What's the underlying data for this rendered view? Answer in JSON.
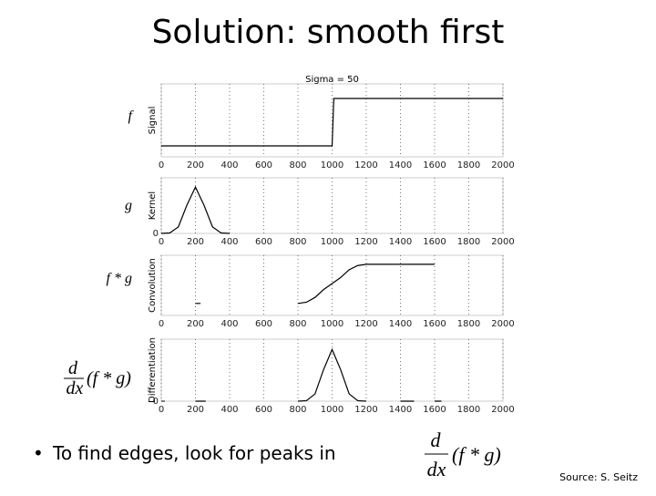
{
  "title": "Solution: smooth first",
  "bullet": {
    "text": "To find edges, look for peaks in",
    "numerator": "d",
    "denominator": "dx",
    "expr": "(f * g)"
  },
  "source": "Source: S. Seitz",
  "derivative_label": {
    "numerator": "d",
    "denominator": "dx",
    "expr": "(f * g)"
  },
  "chart_data": [
    {
      "type": "line",
      "title": "Sigma = 50",
      "ylabel": "Signal",
      "side_label": "f",
      "color": "#000000",
      "grid": true,
      "x": [
        0,
        1000,
        1010,
        2000
      ],
      "values": [
        0.15,
        0.15,
        0.8,
        0.8
      ],
      "xlim": [
        0,
        2000
      ],
      "xticks": [
        0,
        200,
        400,
        600,
        800,
        1000,
        1200,
        1400,
        1600,
        1800,
        2000
      ],
      "ylim": [
        0,
        1
      ]
    },
    {
      "type": "line",
      "ylabel": "Kernel",
      "side_label": "g",
      "color": "#000000",
      "grid": true,
      "x": [
        0,
        50,
        100,
        150,
        200,
        250,
        300,
        350,
        400
      ],
      "values": [
        0,
        0.01,
        0.14,
        0.61,
        1,
        0.61,
        0.14,
        0.01,
        0
      ],
      "xlim": [
        0,
        2000
      ],
      "xticks": [
        0,
        200,
        400,
        600,
        800,
        1000,
        1200,
        1400,
        1600,
        1800,
        2000
      ],
      "ylim": [
        0,
        1.2
      ],
      "yticks": [
        0
      ]
    },
    {
      "type": "line",
      "ylabel": "Convolution",
      "side_label": "f * g",
      "color": "#000000",
      "grid": true,
      "x": [
        200,
        230,
        500,
        800,
        850,
        900,
        950,
        1000,
        1050,
        1100,
        1150,
        1200,
        1600
      ],
      "values": [
        0.2,
        0.2,
        null,
        0.2,
        0.22,
        0.3,
        0.43,
        0.53,
        0.63,
        0.76,
        0.83,
        0.85,
        0.85
      ],
      "xlim": [
        0,
        2000
      ],
      "xticks": [
        0,
        200,
        400,
        600,
        800,
        1000,
        1200,
        1400,
        1600,
        1800,
        2000
      ],
      "ylim": [
        0,
        1
      ]
    },
    {
      "type": "line",
      "ylabel": "Differentiation",
      "color": "#000000",
      "grid": true,
      "x": [
        200,
        260,
        500,
        800,
        850,
        900,
        950,
        1000,
        1050,
        1100,
        1150,
        1200,
        1300,
        1400,
        1480,
        1550,
        1600,
        1640
      ],
      "values": [
        0,
        0,
        null,
        0,
        0.01,
        0.14,
        0.61,
        1,
        0.61,
        0.14,
        0.01,
        0,
        null,
        0,
        0,
        null,
        0,
        0
      ],
      "xlim": [
        0,
        2000
      ],
      "xticks": [
        0,
        200,
        400,
        600,
        800,
        1000,
        1200,
        1400,
        1600,
        1800,
        2000
      ],
      "ylim": [
        0,
        1.2
      ],
      "yticks": [
        0
      ]
    }
  ]
}
